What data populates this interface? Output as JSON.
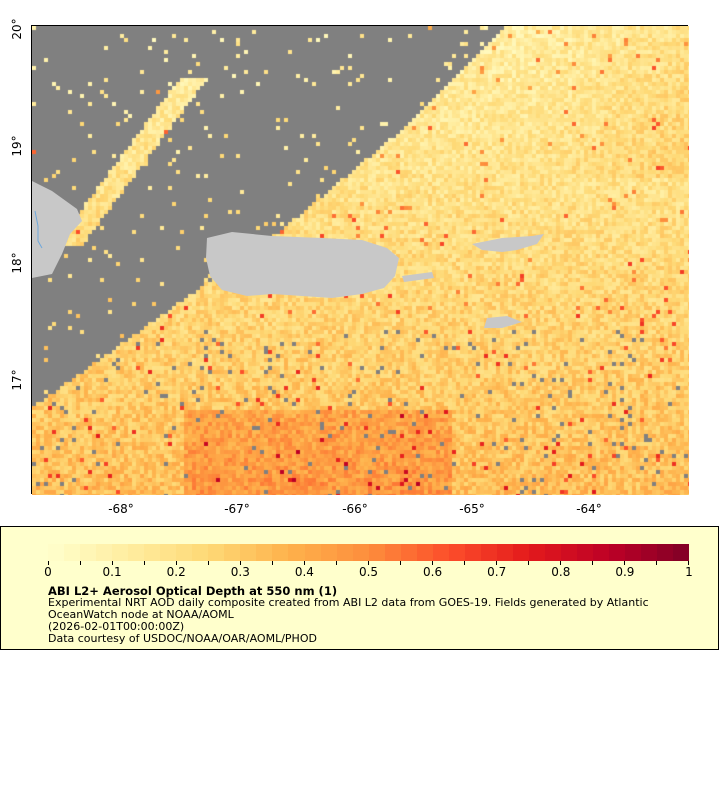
{
  "map": {
    "lat_labels": [
      "20°",
      "19°",
      "18°",
      "17°"
    ],
    "lon_labels": [
      "-68°",
      "-67°",
      "-66°",
      "-65°",
      "-64°"
    ],
    "colors": {
      "no_data": "#808080",
      "land": "#c8c8c8",
      "rivers": "#6fa8dc"
    }
  },
  "legend": {
    "colorbar_labels": [
      "0",
      "0.1",
      "0.2",
      "0.3",
      "0.4",
      "0.5",
      "0.6",
      "0.7",
      "0.8",
      "0.9",
      "1"
    ],
    "colormap_range": [
      0,
      1
    ],
    "colormap": [
      "#ffffcc",
      "#ffeda0",
      "#fed976",
      "#feb24c",
      "#fd8d3c",
      "#fc4e2a",
      "#e31a1c",
      "#bd0026",
      "#800026"
    ],
    "title": "ABI L2+ Aerosol Optical Depth at 550 nm (1)",
    "line1": "Experimental NRT AOD daily composite created from ABI L2 data from GOES-19. Fields generated by Atlantic",
    "line2": "OceanWatch node at NOAA/AOML",
    "line3": "(2026-02-01T00:00:00Z)",
    "line4": "Data courtesy of USDOC/NOAA/OAR/AOML/PHOD"
  }
}
